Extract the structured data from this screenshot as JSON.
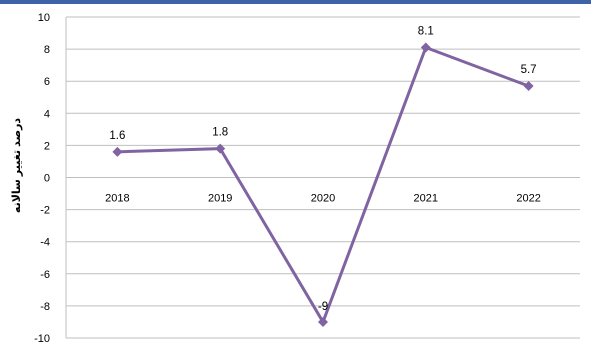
{
  "chart_data": {
    "type": "line",
    "title": "",
    "xlabel": "",
    "ylabel": "درصد تغییر سالانه",
    "categories": [
      "2018",
      "2019",
      "2020",
      "2021",
      "2022"
    ],
    "series": [
      {
        "values": [
          1.6,
          1.8,
          -9,
          8.1,
          5.7
        ],
        "data_labels": [
          "1.6",
          "1.8",
          "-9",
          "8.1",
          "5.7"
        ],
        "color": "#8064a2",
        "marker": "diamond"
      }
    ],
    "ylim": [
      -10,
      10
    ],
    "y_ticks": [
      -10,
      -8,
      -6,
      -4,
      -2,
      0,
      2,
      4,
      6,
      8,
      10
    ],
    "grid": true,
    "grid_color": "#bfbfbf",
    "category_labels_at": "zero-line",
    "legend": "none"
  }
}
